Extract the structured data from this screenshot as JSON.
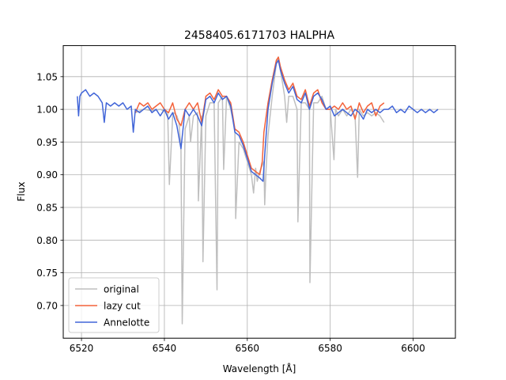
{
  "chart_data": {
    "type": "line",
    "title": "2458405.6171703 HALPHA",
    "xlabel": "Wavelength [Å]",
    "ylabel": "Flux",
    "xlim": [
      6515.6,
      6610.2
    ],
    "ylim": [
      0.65,
      1.0975
    ],
    "xticks": [
      6520,
      6540,
      6560,
      6580,
      6600
    ],
    "yticks": [
      0.7,
      0.75,
      0.8,
      0.85,
      0.9,
      0.95,
      1.0,
      1.05
    ],
    "ytick_labels": [
      "0.70",
      "0.75",
      "0.80",
      "0.85",
      "0.90",
      "0.95",
      "1.00",
      "1.05"
    ],
    "grid": true,
    "legend_position": "lower-left",
    "series": [
      {
        "name": "original",
        "color": "#bfbfbf",
        "x": [
          6533.0,
          6535.0,
          6537.0,
          6539.0,
          6540.8,
          6541.2,
          6542.0,
          6542.3,
          6543.0,
          6543.5,
          6544.0,
          6544.3,
          6545.0,
          6546.0,
          6546.3,
          6547.0,
          6548.0,
          6548.2,
          6549.0,
          6549.3,
          6550.0,
          6551.0,
          6552.0,
          6552.7,
          6553.0,
          6554.0,
          6554.3,
          6555.0,
          6556.0,
          6557.0,
          6557.2,
          6558.0,
          6559.0,
          6560.0,
          6561.0,
          6561.5,
          6562.0,
          6562.4,
          6563.0,
          6564.0,
          6564.2,
          6564.5,
          6565.0,
          6566.0,
          6567.0,
          6567.5,
          6568.0,
          6568.5,
          6569.0,
          6569.5,
          6570.0,
          6571.0,
          6572.0,
          6572.2,
          6573.0,
          6574.0,
          6575.0,
          6575.1,
          6576.0,
          6577.0,
          6578.0,
          6579.0,
          6580.0,
          6580.9,
          6581.3,
          6582.0,
          6583.0,
          6584.0,
          6585.0,
          6586.0,
          6586.6,
          6587.0,
          6588.0,
          6589.0,
          6590.0,
          6591.0,
          6592.0,
          6593.0
        ],
        "y": [
          0.995,
          1.0,
          0.998,
          1.0,
          0.995,
          0.885,
          0.99,
          0.995,
          0.99,
          0.98,
          0.94,
          0.672,
          0.97,
          0.99,
          0.95,
          0.99,
          0.995,
          0.86,
          0.99,
          0.767,
          0.99,
          1.01,
          1.01,
          0.724,
          1.01,
          1.02,
          0.908,
          1.02,
          1.0,
          0.97,
          0.833,
          0.95,
          0.94,
          0.92,
          0.9,
          0.872,
          0.91,
          0.89,
          0.905,
          0.92,
          0.854,
          0.905,
          0.96,
          1.02,
          1.07,
          1.08,
          1.06,
          1.04,
          1.02,
          0.98,
          1.02,
          1.02,
          1.0,
          0.828,
          1.01,
          1.01,
          1.0,
          0.735,
          1.01,
          1.01,
          1.02,
          1.0,
          1.0,
          0.923,
          1.0,
          0.99,
          1.0,
          0.99,
          1.0,
          0.99,
          0.896,
          1.0,
          0.99,
          0.995,
          0.99,
          0.995,
          0.99,
          0.98
        ]
      },
      {
        "name": "lazy cut",
        "color": "#f4623a",
        "x": [
          6533.0,
          6534.0,
          6535.0,
          6536.0,
          6537.0,
          6538.0,
          6539.0,
          6540.0,
          6541.0,
          6542.0,
          6543.0,
          6544.0,
          6545.0,
          6546.0,
          6547.0,
          6548.0,
          6549.0,
          6550.0,
          6551.0,
          6552.0,
          6553.0,
          6554.0,
          6555.0,
          6556.0,
          6557.0,
          6558.0,
          6559.0,
          6560.0,
          6561.0,
          6562.0,
          6563.0,
          6563.6,
          6564.0,
          6565.0,
          6566.0,
          6567.0,
          6567.5,
          6568.0,
          6569.0,
          6570.0,
          6571.0,
          6572.0,
          6573.0,
          6574.0,
          6575.0,
          6576.0,
          6577.0,
          6578.0,
          6579.0,
          6580.0,
          6581.0,
          6582.0,
          6583.0,
          6584.0,
          6585.0,
          6586.0,
          6587.0,
          6588.0,
          6589.0,
          6590.0,
          6591.0,
          6592.0,
          6593.0
        ],
        "y": [
          0.995,
          1.01,
          1.005,
          1.01,
          1.0,
          1.005,
          1.01,
          1.0,
          0.995,
          1.01,
          0.985,
          0.975,
          1.0,
          1.01,
          1.0,
          1.01,
          0.98,
          1.02,
          1.025,
          1.015,
          1.03,
          1.02,
          1.02,
          1.01,
          0.97,
          0.965,
          0.95,
          0.93,
          0.91,
          0.905,
          0.9,
          0.92,
          0.965,
          1.01,
          1.045,
          1.075,
          1.08,
          1.065,
          1.045,
          1.03,
          1.04,
          1.02,
          1.015,
          1.03,
          1.005,
          1.025,
          1.03,
          1.01,
          1.0,
          1.0,
          1.005,
          1.0,
          1.01,
          1.0,
          1.005,
          0.985,
          1.01,
          0.995,
          1.005,
          1.01,
          0.99,
          1.005,
          1.01
        ]
      },
      {
        "name": "Annelotte",
        "color": "#4165d8",
        "x": [
          6519.0,
          6519.3,
          6519.6,
          6520.0,
          6521.0,
          6522.0,
          6523.0,
          6524.0,
          6525.0,
          6525.5,
          6526.0,
          6527.0,
          6528.0,
          6529.0,
          6530.0,
          6531.0,
          6532.0,
          6532.5,
          6533.0,
          6534.0,
          6535.0,
          6536.0,
          6537.0,
          6538.0,
          6539.0,
          6540.0,
          6541.0,
          6542.0,
          6543.0,
          6544.0,
          6545.0,
          6546.0,
          6547.0,
          6548.0,
          6549.0,
          6550.0,
          6551.0,
          6552.0,
          6553.0,
          6554.0,
          6555.0,
          6556.0,
          6557.0,
          6558.0,
          6559.0,
          6560.0,
          6561.0,
          6562.0,
          6563.0,
          6563.8,
          6564.2,
          6565.0,
          6566.0,
          6567.0,
          6567.5,
          6568.0,
          6569.0,
          6570.0,
          6571.0,
          6572.0,
          6573.0,
          6574.0,
          6575.0,
          6576.0,
          6577.0,
          6578.0,
          6579.0,
          6580.0,
          6581.0,
          6582.0,
          6583.0,
          6584.0,
          6585.0,
          6586.0,
          6587.0,
          6588.0,
          6589.0,
          6590.0,
          6591.0,
          6592.0,
          6593.0,
          6594.0,
          6595.0,
          6596.0,
          6597.0,
          6598.0,
          6599.0,
          6600.0,
          6601.0,
          6602.0,
          6603.0,
          6604.0,
          6605.0,
          6606.0
        ],
        "y": [
          1.02,
          0.99,
          1.02,
          1.025,
          1.03,
          1.02,
          1.025,
          1.02,
          1.01,
          0.98,
          1.01,
          1.005,
          1.01,
          1.005,
          1.01,
          1.0,
          1.005,
          0.965,
          1.0,
          0.995,
          1.0,
          1.005,
          0.995,
          1.0,
          0.99,
          1.0,
          0.985,
          0.995,
          0.975,
          0.94,
          1.0,
          0.99,
          1.0,
          0.99,
          0.975,
          1.015,
          1.02,
          1.01,
          1.025,
          1.015,
          1.02,
          1.005,
          0.965,
          0.96,
          0.945,
          0.925,
          0.905,
          0.9,
          0.895,
          0.89,
          0.93,
          1.0,
          1.04,
          1.07,
          1.075,
          1.06,
          1.04,
          1.025,
          1.035,
          1.015,
          1.01,
          1.025,
          1.0,
          1.02,
          1.025,
          1.015,
          1.0,
          1.005,
          0.99,
          0.995,
          1.0,
          0.995,
          0.99,
          1.0,
          0.995,
          0.985,
          1.0,
          0.995,
          1.0,
          0.995,
          1.0,
          1.0,
          1.005,
          0.995,
          1.0,
          0.995,
          1.005,
          1.0,
          0.995,
          1.0,
          0.995,
          1.0,
          0.995,
          1.0
        ]
      }
    ]
  }
}
